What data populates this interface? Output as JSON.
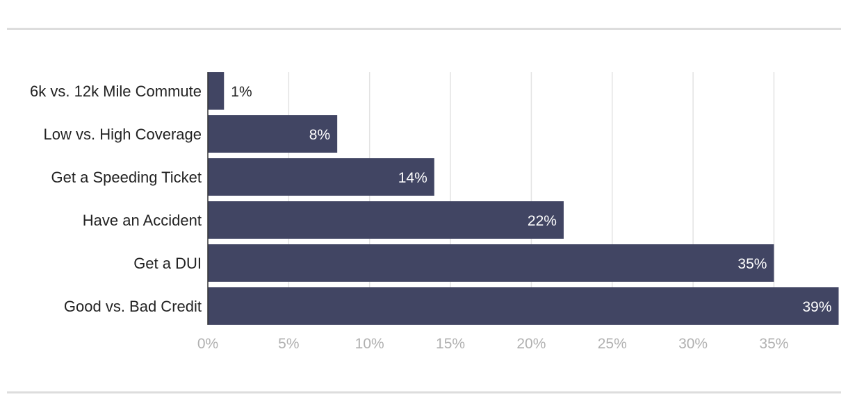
{
  "chart_data": {
    "type": "bar",
    "orientation": "horizontal",
    "categories": [
      "6k vs. 12k Mile Commute",
      "Low vs. High Coverage",
      "Get a Speeding Ticket",
      "Have an Accident",
      "Get a DUI",
      "Good vs. Bad Credit"
    ],
    "values": [
      1,
      8,
      14,
      22,
      35,
      39
    ],
    "data_labels": [
      "1%",
      "8%",
      "14%",
      "22%",
      "35%",
      "39%"
    ],
    "x_ticks": [
      0,
      5,
      10,
      15,
      20,
      25,
      30,
      35
    ],
    "x_tick_labels": [
      "0%",
      "5%",
      "10%",
      "15%",
      "20%",
      "25%",
      "30%",
      "35%"
    ],
    "xlim": [
      0,
      39
    ],
    "title": "",
    "xlabel": "",
    "ylabel": "",
    "grid": "vertical",
    "legend": "none",
    "colors": {
      "bar": "#414563",
      "grid": "#e3e3e3",
      "axis": "#333333",
      "tick_text": "#b0b0b0",
      "category_text": "#222222",
      "label_inside": "#ffffff",
      "label_outside": "#222222"
    }
  }
}
